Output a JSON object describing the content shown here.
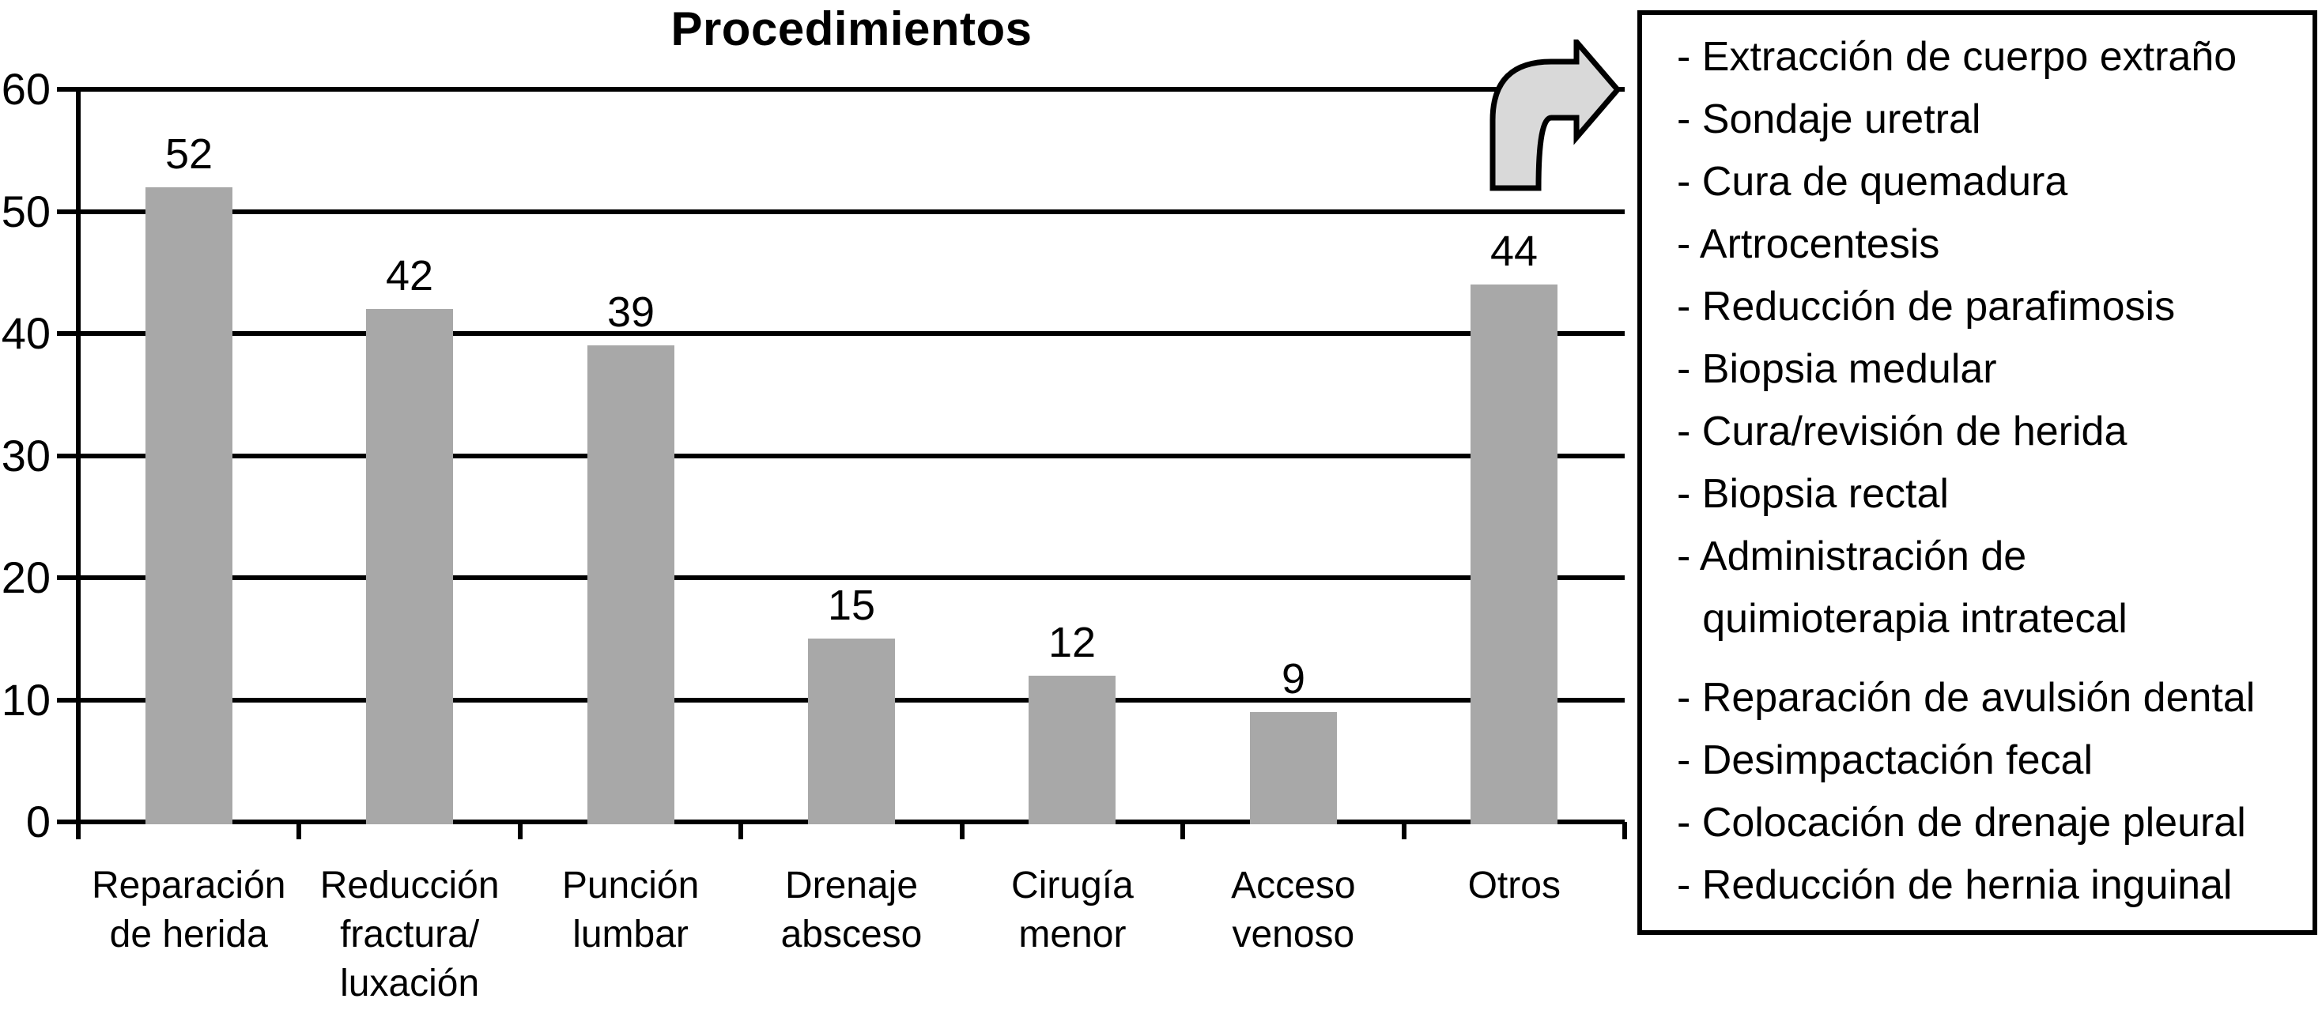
{
  "colors": {
    "bar": "#a8a8a8",
    "arrow_fill": "#d9d9d9",
    "line": "#000000",
    "background": "#ffffff"
  },
  "chart_data": {
    "type": "bar",
    "title": "Procedimientos",
    "categories": [
      [
        "Reparación",
        "de herida"
      ],
      [
        "Reducción",
        "fractura/",
        "luxación"
      ],
      [
        "Punción",
        "lumbar"
      ],
      [
        "Drenaje",
        "absceso"
      ],
      [
        "Cirugía",
        "menor"
      ],
      [
        "Acceso",
        "venoso"
      ],
      [
        "Otros"
      ]
    ],
    "values": [
      52,
      42,
      39,
      15,
      12,
      9,
      44
    ],
    "bar_value_labels": [
      "52",
      "42",
      "39",
      "15",
      "12",
      "9",
      "44"
    ],
    "y_axis_ticks": [
      0,
      10,
      20,
      30,
      40,
      50,
      60
    ],
    "ylim": [
      0,
      60
    ],
    "xlabel": "",
    "ylabel": "",
    "grid": true,
    "legend_position": "right-box"
  },
  "annotation_box": {
    "bullet": "-",
    "gap_after_index": 8,
    "items": [
      [
        "Extracción de cuerpo extraño"
      ],
      [
        "Sondaje uretral"
      ],
      [
        "Cura de quemadura"
      ],
      [
        "Artrocentesis"
      ],
      [
        "Reducción de parafimosis"
      ],
      [
        "Biopsia medular"
      ],
      [
        "Cura/revisión de herida"
      ],
      [
        "Biopsia rectal"
      ],
      [
        "Administración de",
        "quimioterapia intratecal"
      ],
      [
        "Reparación de avulsión dental"
      ],
      [
        "Desimpactación fecal"
      ],
      [
        "Colocación de drenaje pleural"
      ],
      [
        "Reducción de hernia inguinal"
      ]
    ]
  }
}
